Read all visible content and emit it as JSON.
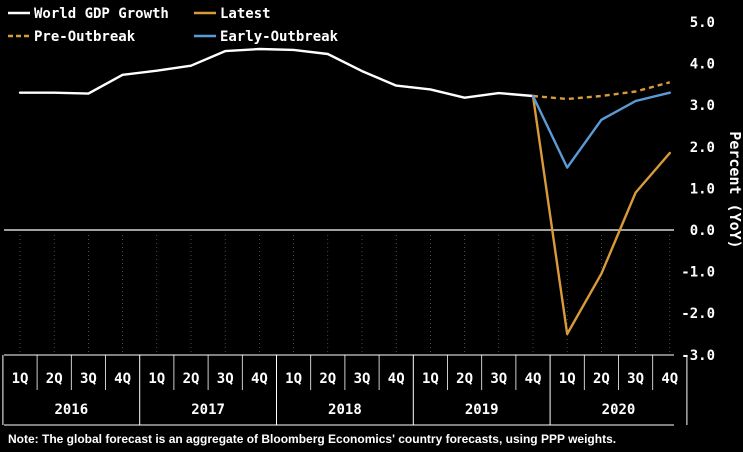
{
  "chart_data": {
    "type": "line",
    "categories": [
      "1Q",
      "2Q",
      "3Q",
      "4Q",
      "1Q",
      "2Q",
      "3Q",
      "4Q",
      "1Q",
      "2Q",
      "3Q",
      "4Q",
      "1Q",
      "2Q",
      "3Q",
      "4Q",
      "1Q",
      "2Q",
      "3Q",
      "4Q"
    ],
    "years": [
      "2016",
      "2017",
      "2018",
      "2019",
      "2020"
    ],
    "ylabel": "Percent (YoY)",
    "ylim": [
      -3.0,
      5.0
    ],
    "yticks": [
      "5.0",
      "4.0",
      "3.0",
      "2.0",
      "1.0",
      "0.0",
      "-1.0",
      "-2.0",
      "-3.0"
    ],
    "legend_position": "top-left",
    "series": [
      {
        "name": "World GDP Growth",
        "color": "#ffffff",
        "style": "solid",
        "points": [
          [
            0,
            3.3
          ],
          [
            1,
            3.3
          ],
          [
            2,
            3.28
          ],
          [
            3,
            3.73
          ],
          [
            4,
            3.83
          ],
          [
            5,
            3.95
          ],
          [
            6,
            4.3
          ],
          [
            7,
            4.35
          ],
          [
            8,
            4.33
          ],
          [
            9,
            4.23
          ],
          [
            10,
            3.82
          ],
          [
            11,
            3.47
          ],
          [
            12,
            3.38
          ],
          [
            13,
            3.18
          ],
          [
            14,
            3.29
          ],
          [
            15,
            3.22
          ]
        ]
      },
      {
        "name": "Latest",
        "color": "#d99a3a",
        "style": "solid",
        "points": [
          [
            15,
            3.22
          ],
          [
            16,
            -2.5
          ],
          [
            17,
            -1.05
          ],
          [
            18,
            0.9
          ],
          [
            19,
            1.85
          ]
        ]
      },
      {
        "name": "Pre-Outbreak",
        "color": "#d99a3a",
        "style": "dashed",
        "points": [
          [
            15,
            3.22
          ],
          [
            16,
            3.15
          ],
          [
            17,
            3.22
          ],
          [
            18,
            3.33
          ],
          [
            19,
            3.55
          ]
        ]
      },
      {
        "name": "Early-Outbreak",
        "color": "#5b9bd5",
        "style": "solid",
        "points": [
          [
            15,
            3.22
          ],
          [
            16,
            1.5
          ],
          [
            17,
            2.65
          ],
          [
            18,
            3.1
          ],
          [
            19,
            3.3
          ]
        ]
      }
    ]
  },
  "note": "Note: The global forecast is an aggregate of Bloomberg Economics' country forecasts, using PPP weights."
}
